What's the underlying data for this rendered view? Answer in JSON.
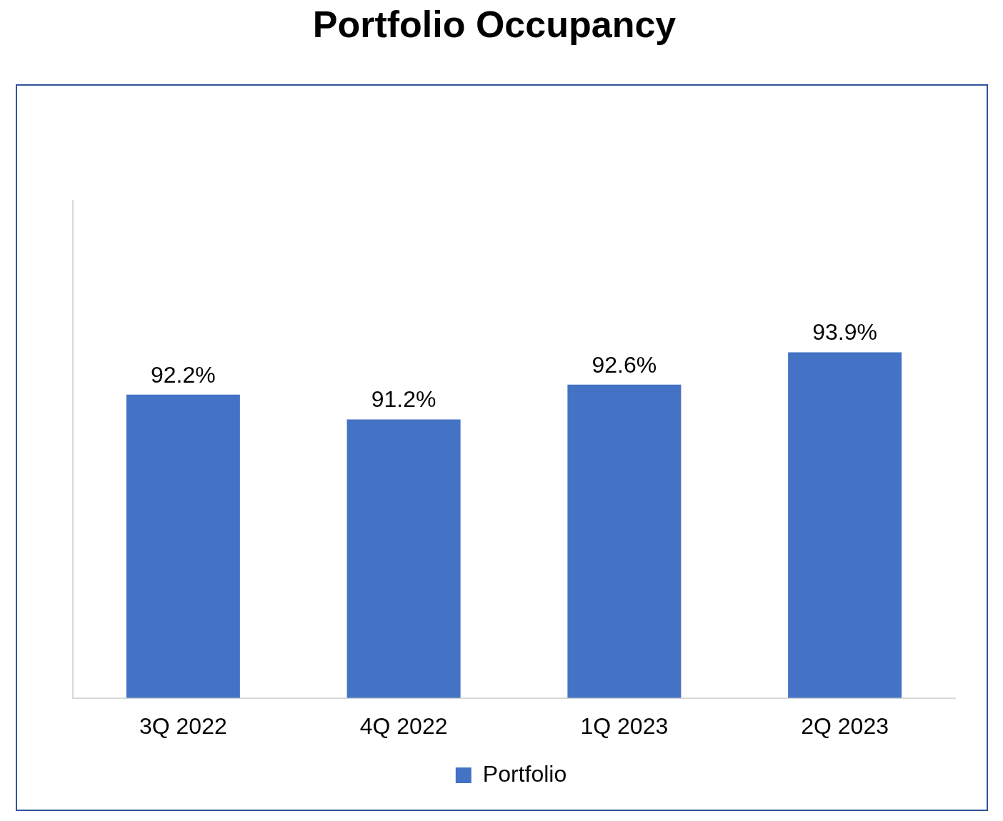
{
  "chart_data": {
    "type": "bar",
    "title": "Portfolio Occupancy",
    "categories": [
      "3Q 2022",
      "4Q 2022",
      "1Q 2023",
      "2Q 2023"
    ],
    "series": [
      {
        "name": "Portfolio",
        "color": "#4472c4",
        "values": [
          92.2,
          91.2,
          92.6,
          93.9
        ],
        "value_labels": [
          "92.2%",
          "91.2%",
          "92.6%",
          "93.9%"
        ]
      }
    ],
    "ylim": [
      80,
      100
    ],
    "grid": false,
    "legend": "bottom",
    "data_labels": true,
    "tick_labels": "x"
  }
}
